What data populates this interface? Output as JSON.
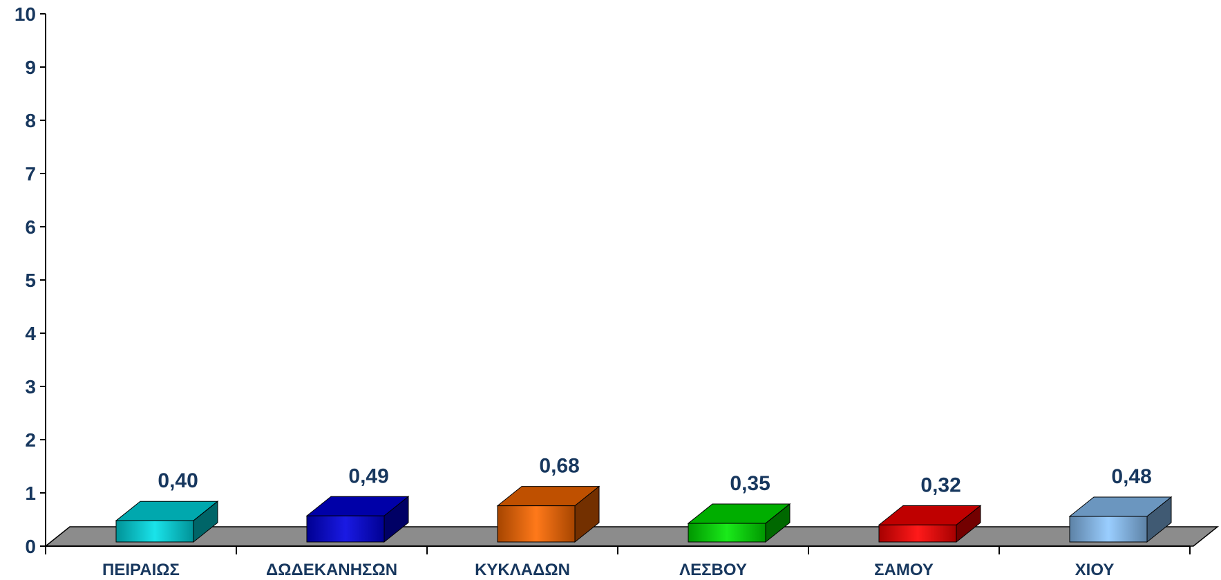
{
  "chart_data": {
    "type": "bar",
    "categories": [
      "ΠΕΙΡΑΙΩΣ",
      "ΔΩΔΕΚΑΝΗΣΩΝ",
      "ΚΥΚΛΑΔΩΝ",
      "ΛΕΣΒΟΥ",
      "ΣΑΜΟΥ",
      "ΧΙΟΥ"
    ],
    "values": [
      0.4,
      0.49,
      0.68,
      0.35,
      0.32,
      0.48
    ],
    "data_labels": [
      "0,40",
      "0,49",
      "0,68",
      "0,35",
      "0,32",
      "0,48"
    ],
    "colors": [
      "#00e0e8",
      "#0000e0",
      "#ff6a00",
      "#00e800",
      "#ff0000",
      "#8fc8ff"
    ],
    "ylim": [
      0,
      10
    ],
    "yticks": [
      "0",
      "1",
      "2",
      "3",
      "4",
      "5",
      "6",
      "7",
      "8",
      "9",
      "10"
    ],
    "grid": false,
    "style": "3d"
  }
}
